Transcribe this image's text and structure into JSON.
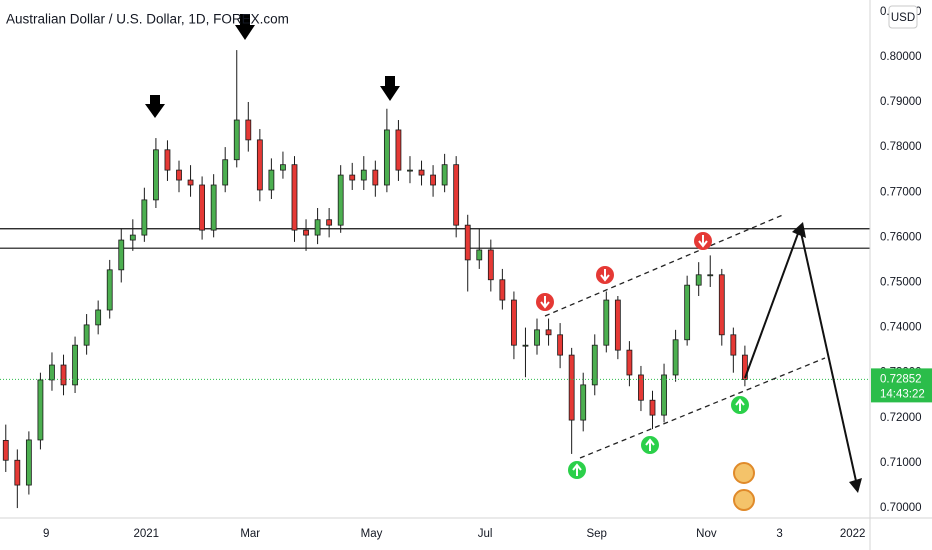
{
  "chart_data": {
    "type": "candlestick",
    "title": "Australian Dollar / U.S. Dollar, 1D, FOREX.com",
    "currency": "USD",
    "countdown": "14:43:22",
    "last_price": 0.72852,
    "last_price_color": "#2bbd4a",
    "up_color": "#4caf50",
    "down_color": "#e53935",
    "levels": [
      0.7619,
      0.7576
    ],
    "grid": false,
    "xlim": [
      0,
      452
    ],
    "ylim": [
      0.6978,
      0.8126
    ],
    "xticks": [
      {
        "value": 24,
        "label": "9"
      },
      {
        "value": 76,
        "label": "2021"
      },
      {
        "value": 130,
        "label": "Mar"
      },
      {
        "value": 193,
        "label": "May"
      },
      {
        "value": 252,
        "label": "Jul"
      },
      {
        "value": 310,
        "label": "Sep"
      },
      {
        "value": 367,
        "label": "Nov"
      },
      {
        "value": 405,
        "label": "3"
      },
      {
        "value": 443,
        "label": "2022"
      }
    ],
    "yticks": [
      {
        "value": 0.7,
        "label": "0.70000"
      },
      {
        "value": 0.71,
        "label": "0.71000"
      },
      {
        "value": 0.72,
        "label": "0.72000"
      },
      {
        "value": 0.73,
        "label": "0.73000"
      },
      {
        "value": 0.74,
        "label": "0.74000"
      },
      {
        "value": 0.75,
        "label": "0.75000"
      },
      {
        "value": 0.76,
        "label": "0.76000"
      },
      {
        "value": 0.77,
        "label": "0.77000"
      },
      {
        "value": 0.78,
        "label": "0.78000"
      },
      {
        "value": 0.79,
        "label": "0.79000"
      },
      {
        "value": 0.8,
        "label": "0.80000"
      },
      {
        "value": 0.81,
        "label": "0.81000"
      }
    ],
    "x": [
      3,
      9,
      15,
      21,
      27,
      33,
      39,
      45,
      51,
      57,
      63,
      69,
      75,
      81,
      87,
      93,
      99,
      105,
      111,
      117,
      123,
      129,
      135,
      141,
      147,
      153,
      159,
      165,
      171,
      177,
      183,
      189,
      195,
      201,
      207,
      213,
      219,
      225,
      231,
      237,
      243,
      249,
      255,
      261,
      267,
      273,
      279,
      285,
      291,
      297,
      303,
      309,
      315,
      321,
      327,
      333,
      339,
      345,
      351,
      357,
      363,
      369,
      375,
      381,
      387
    ],
    "open": [
      0.715,
      0.7106,
      0.7051,
      0.7151,
      0.7284,
      0.7317,
      0.7273,
      0.7361,
      0.7406,
      0.7439,
      0.7528,
      0.7594,
      0.7605,
      0.7683,
      0.7794,
      0.7749,
      0.7727,
      0.7716,
      0.7616,
      0.7716,
      0.7772,
      0.786,
      0.7816,
      0.7705,
      0.7749,
      0.7761,
      0.7616,
      0.7605,
      0.7639,
      0.7627,
      0.7738,
      0.7727,
      0.7749,
      0.7716,
      0.7838,
      0.7749,
      0.7749,
      0.7738,
      0.7716,
      0.7761,
      0.7627,
      0.755,
      0.7572,
      0.7506,
      0.7461,
      0.7361,
      0.7361,
      0.7395,
      0.7384,
      0.7339,
      0.7195,
      0.7273,
      0.7361,
      0.7461,
      0.735,
      0.7295,
      0.7239,
      0.7206,
      0.7295,
      0.7373,
      0.7494,
      0.7517,
      0.7517,
      0.7384,
      0.7339
    ],
    "high": [
      0.7185,
      0.713,
      0.717,
      0.73,
      0.7345,
      0.734,
      0.738,
      0.743,
      0.746,
      0.755,
      0.762,
      0.764,
      0.771,
      0.782,
      0.7815,
      0.777,
      0.776,
      0.7735,
      0.774,
      0.78,
      0.8015,
      0.79,
      0.784,
      0.7775,
      0.779,
      0.778,
      0.764,
      0.7665,
      0.7665,
      0.776,
      0.7765,
      0.778,
      0.777,
      0.7885,
      0.786,
      0.778,
      0.777,
      0.776,
      0.7785,
      0.778,
      0.765,
      0.762,
      0.7595,
      0.753,
      0.748,
      0.74,
      0.742,
      0.742,
      0.741,
      0.7355,
      0.73,
      0.7385,
      0.748,
      0.747,
      0.737,
      0.7315,
      0.726,
      0.732,
      0.7395,
      0.7515,
      0.7545,
      0.756,
      0.753,
      0.74,
      0.736
    ],
    "low": [
      0.708,
      0.7,
      0.703,
      0.713,
      0.726,
      0.725,
      0.7255,
      0.734,
      0.7385,
      0.742,
      0.75,
      0.757,
      0.759,
      0.7665,
      0.7725,
      0.77,
      0.769,
      0.7595,
      0.76,
      0.77,
      0.7755,
      0.779,
      0.768,
      0.7685,
      0.773,
      0.759,
      0.757,
      0.7585,
      0.76,
      0.761,
      0.7705,
      0.7705,
      0.769,
      0.77,
      0.7725,
      0.772,
      0.7715,
      0.769,
      0.77,
      0.76,
      0.748,
      0.753,
      0.748,
      0.744,
      0.733,
      0.729,
      0.734,
      0.736,
      0.731,
      0.712,
      0.717,
      0.725,
      0.7345,
      0.733,
      0.727,
      0.7215,
      0.7175,
      0.719,
      0.728,
      0.736,
      0.747,
      0.749,
      0.736,
      0.73,
      0.727
    ],
    "close": [
      0.7106,
      0.7051,
      0.7151,
      0.7284,
      0.7317,
      0.7273,
      0.7361,
      0.7406,
      0.7439,
      0.7528,
      0.7594,
      0.7605,
      0.7683,
      0.7794,
      0.7749,
      0.7727,
      0.7716,
      0.7616,
      0.7716,
      0.7772,
      0.786,
      0.7816,
      0.7705,
      0.7749,
      0.7761,
      0.7616,
      0.7605,
      0.7639,
      0.7627,
      0.7738,
      0.7727,
      0.7749,
      0.7716,
      0.7838,
      0.7749,
      0.7749,
      0.7738,
      0.7716,
      0.7761,
      0.7627,
      0.755,
      0.7572,
      0.7506,
      0.7461,
      0.7361,
      0.7361,
      0.7395,
      0.7384,
      0.7339,
      0.7195,
      0.7273,
      0.7361,
      0.7461,
      0.735,
      0.7295,
      0.7239,
      0.7206,
      0.7295,
      0.7373,
      0.7494,
      0.7517,
      0.7517,
      0.7384,
      0.7339,
      0.7285
    ]
  }
}
